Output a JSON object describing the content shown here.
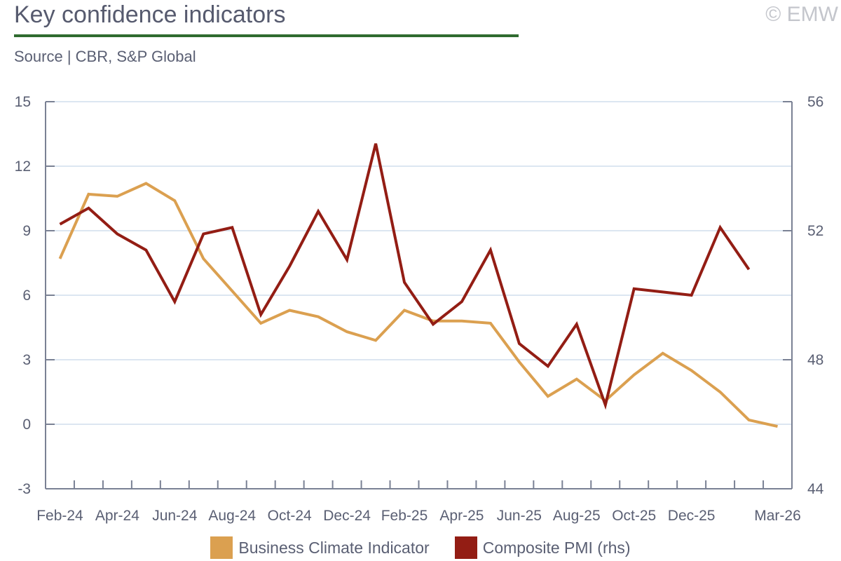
{
  "header": {
    "title": "Key confidence indicators",
    "source": "Source | CBR, S&P Global",
    "watermark": "© EMW"
  },
  "chart_data": {
    "type": "line",
    "title": "Key confidence indicators",
    "categories": [
      "Feb-24",
      "Mar-24",
      "Apr-24",
      "May-24",
      "Jun-24",
      "Jul-24",
      "Aug-24",
      "Sep-24",
      "Oct-24",
      "Nov-24",
      "Dec-24",
      "Jan-25",
      "Feb-25",
      "Mar-25",
      "Apr-25",
      "May-25",
      "Jun-25",
      "Jul-25",
      "Aug-25",
      "Sep-25",
      "Oct-25",
      "Nov-25",
      "Dec-25",
      "Jan-26",
      "Feb-26",
      "Mar-26"
    ],
    "x_tick_labels": [
      "Feb-24",
      "Apr-24",
      "Jun-24",
      "Aug-24",
      "Oct-24",
      "Dec-24",
      "Feb-25",
      "Apr-25",
      "Jun-25",
      "Aug-25",
      "Oct-25",
      "Dec-25",
      "Mar-26"
    ],
    "y_left": {
      "lim": [
        -3,
        15
      ],
      "ticks": [
        "-3",
        "0",
        "3",
        "6",
        "9",
        "12",
        "15"
      ]
    },
    "y_right": {
      "lim": [
        44,
        56
      ],
      "ticks": [
        "44",
        "48",
        "52",
        "56"
      ]
    },
    "grid": true,
    "legend_position": "bottom",
    "series": [
      {
        "name": "Business Climate Indicator",
        "axis": "left",
        "color": "#dba050",
        "values": [
          7.7,
          10.7,
          10.6,
          11.2,
          10.4,
          7.7,
          6.2,
          4.7,
          5.3,
          5.0,
          4.3,
          3.9,
          5.3,
          4.8,
          4.8,
          4.7,
          2.9,
          1.3,
          2.1,
          1.1,
          2.3,
          3.3,
          2.5,
          1.5,
          0.2,
          -0.1
        ]
      },
      {
        "name": "Composite PMI (rhs)",
        "axis": "right",
        "color": "#931d14",
        "values": [
          52.2,
          52.7,
          51.9,
          51.4,
          49.8,
          51.9,
          52.1,
          49.4,
          50.9,
          52.6,
          51.1,
          54.7,
          50.4,
          49.1,
          49.8,
          51.4,
          48.5,
          47.8,
          49.1,
          46.6,
          50.2,
          50.1,
          50.0,
          52.1,
          50.8,
          null
        ]
      }
    ]
  }
}
